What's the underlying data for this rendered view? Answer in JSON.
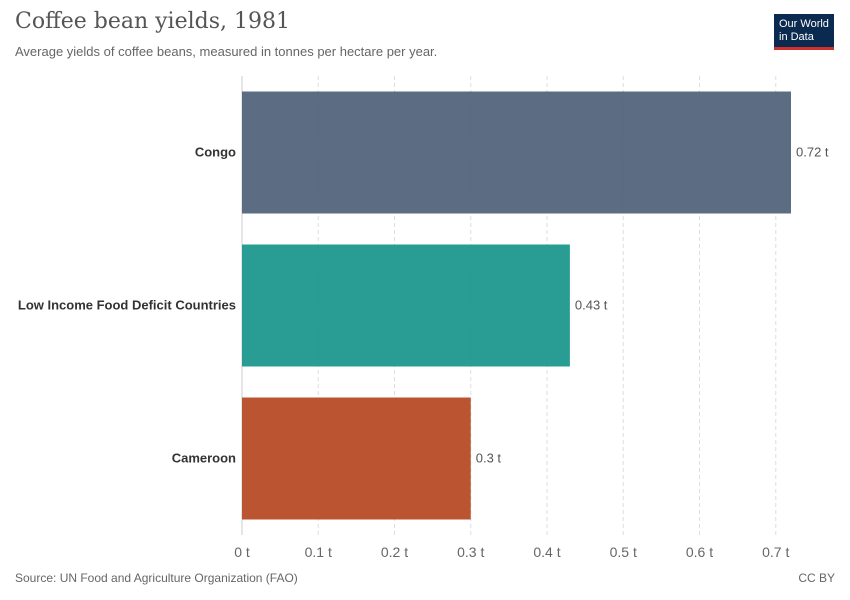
{
  "header": {
    "title": "Coffee bean yields, 1981",
    "subtitle": "Average yields of coffee beans, measured in tonnes per hectare per year."
  },
  "logo": {
    "line1": "Our World",
    "line2": "in Data"
  },
  "footer": {
    "source": "Source: UN Food and Agriculture Organization (FAO)",
    "license": "CC BY"
  },
  "chart_data": {
    "type": "bar",
    "orientation": "horizontal",
    "categories": [
      "Congo",
      "Low Income Food Deficit Countries",
      "Cameroon"
    ],
    "values": [
      0.72,
      0.43,
      0.3
    ],
    "value_labels": [
      "0.72 t",
      "0.43 t",
      "0.3 t"
    ],
    "colors": [
      "#4d5f78",
      "#17948a",
      "#b5461f"
    ],
    "xlim": [
      0,
      0.72
    ],
    "ticks": [
      0,
      0.1,
      0.2,
      0.3,
      0.4,
      0.5,
      0.6,
      0.7
    ],
    "tick_labels": [
      "0 t",
      "0.1 t",
      "0.2 t",
      "0.3 t",
      "0.4 t",
      "0.5 t",
      "0.6 t",
      "0.7 t"
    ],
    "grid": true,
    "title": "Coffee bean yields, 1981",
    "xlabel": "",
    "ylabel": ""
  }
}
